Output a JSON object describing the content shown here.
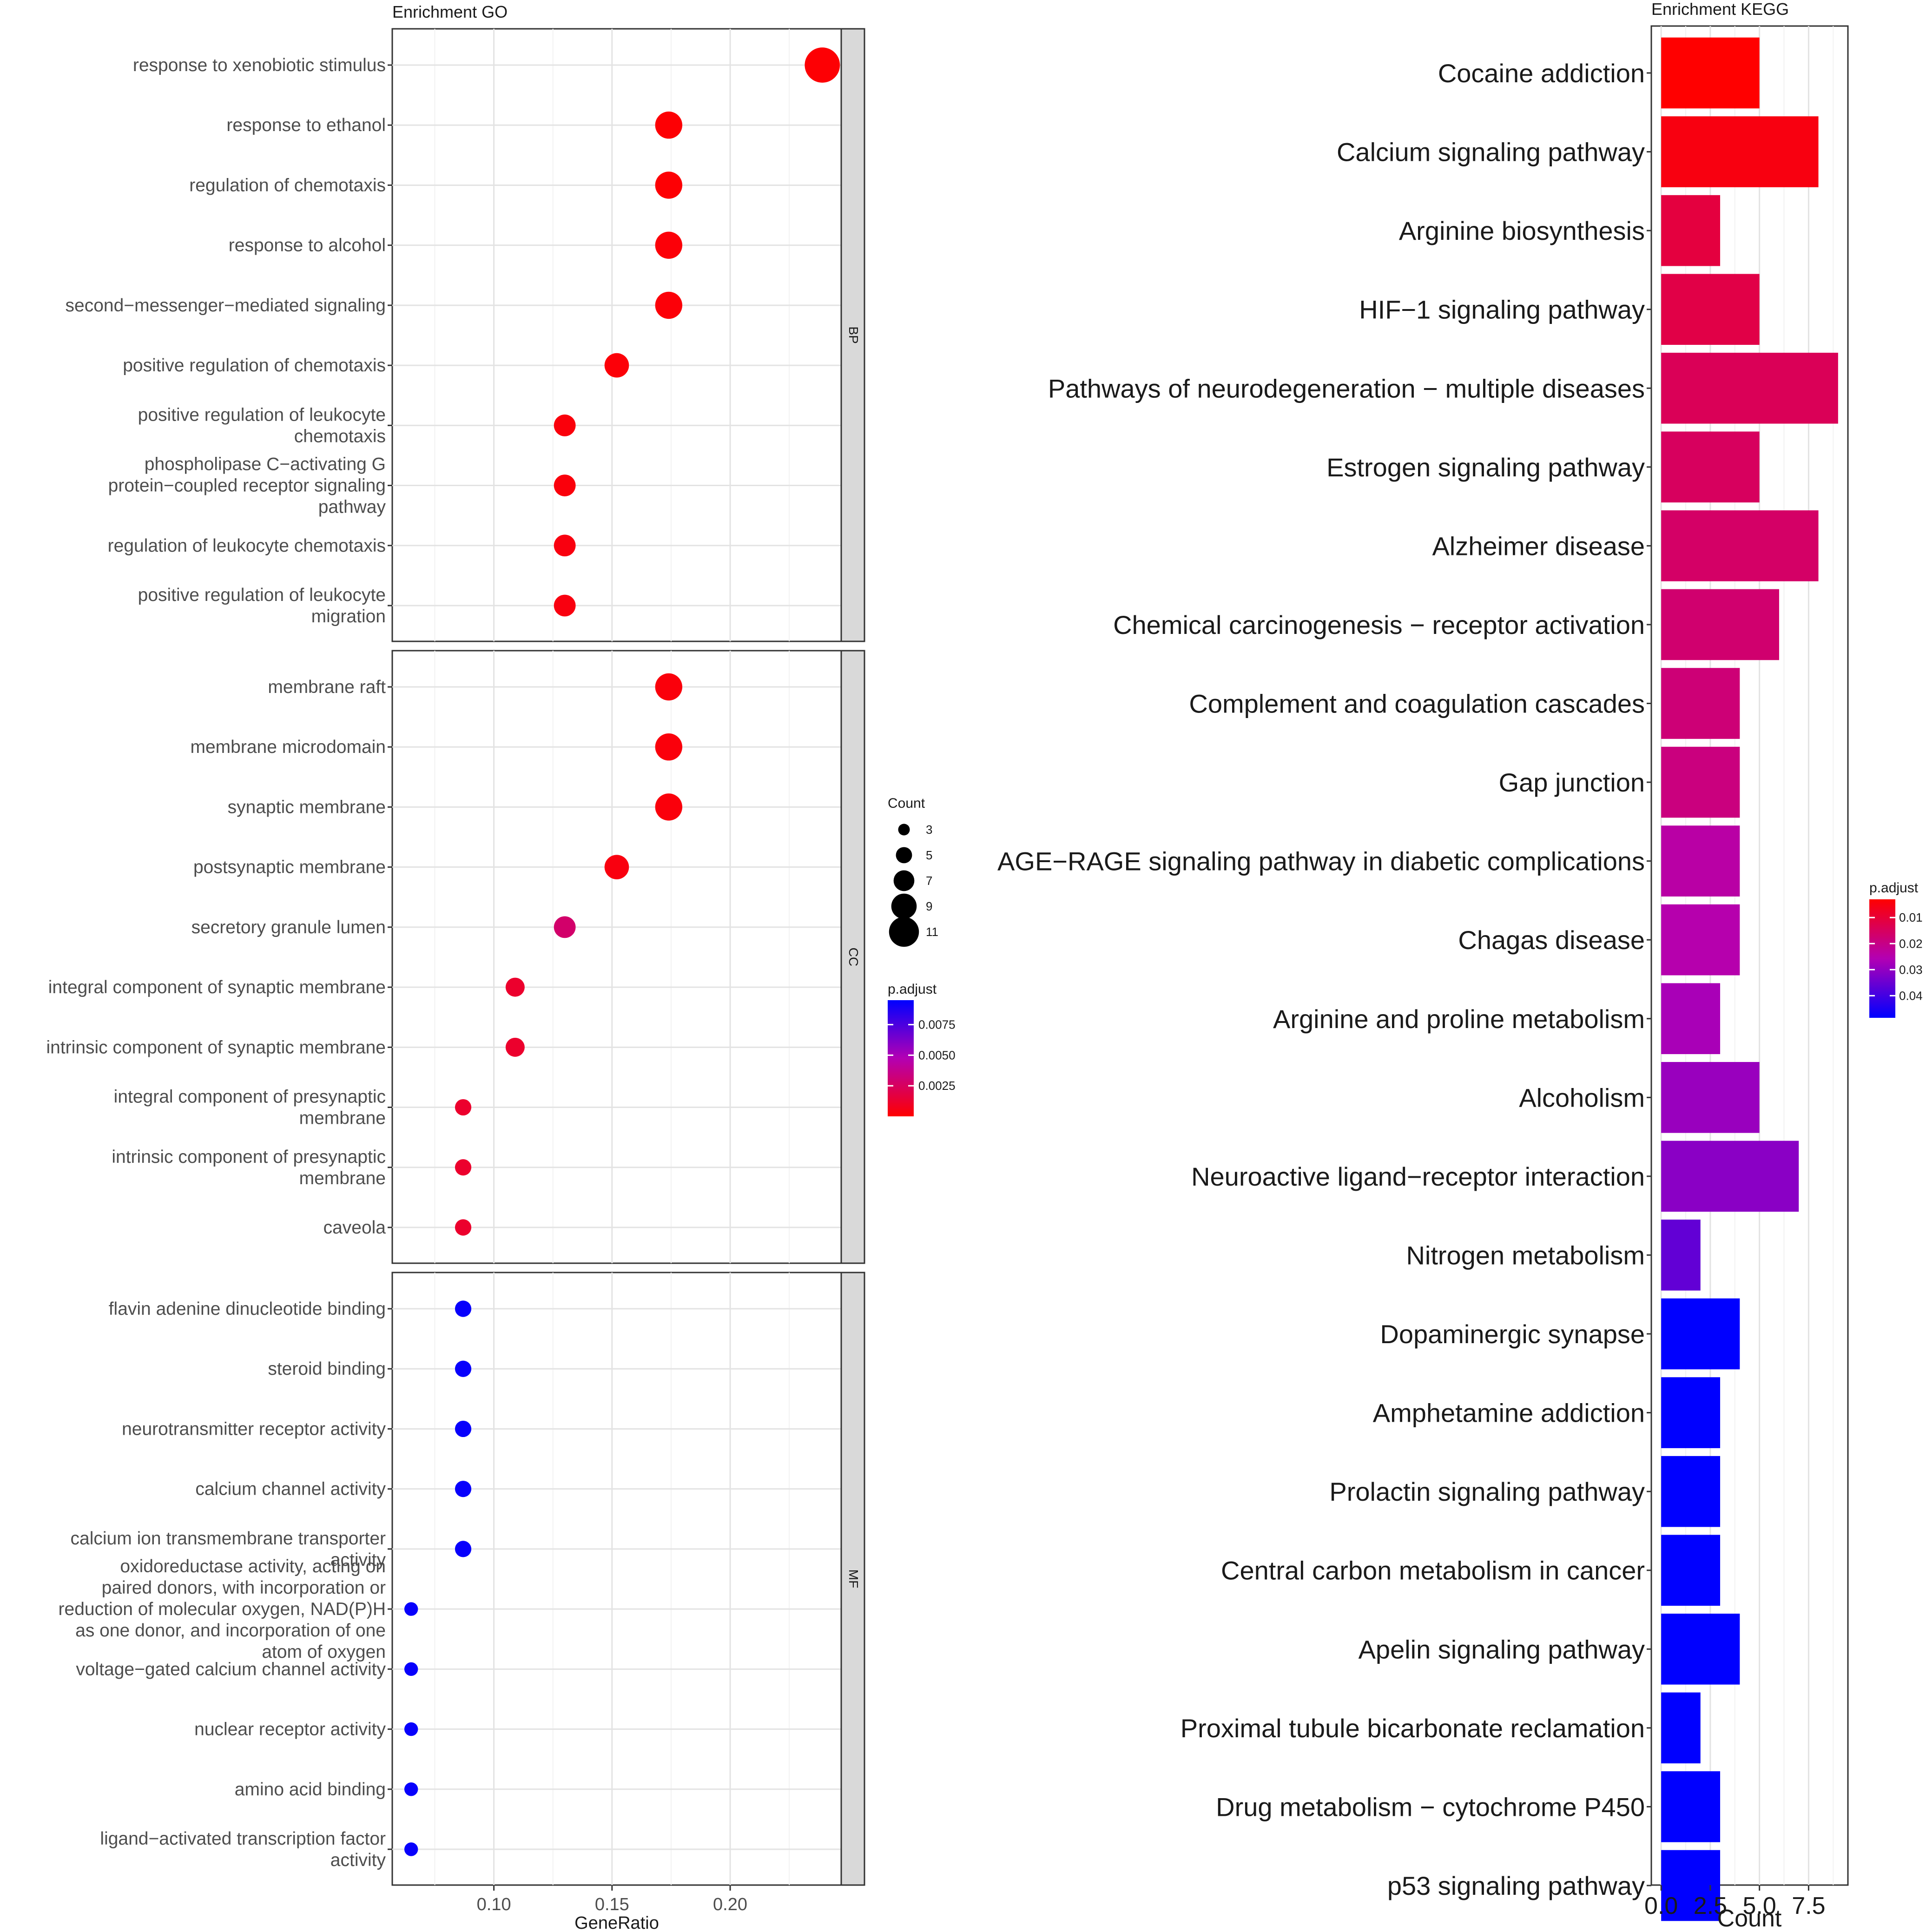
{
  "chart_data": [
    {
      "type": "scatter",
      "title": "Enrichment GO",
      "xlabel": "GeneRatio",
      "ylabel": "",
      "xlim": [
        0.057,
        0.247
      ],
      "x_ticks": [
        "0.10",
        "0.15",
        "0.20"
      ],
      "x_tick_values": [
        0.1,
        0.15,
        0.2
      ],
      "grid": true,
      "size_legend": {
        "title": "Count",
        "values": [
          3,
          5,
          7,
          9,
          11
        ]
      },
      "color_legend": {
        "title": "p.adjust",
        "range": [
          0.0,
          0.0095
        ],
        "ticks": [
          "0.0075",
          "0.0050",
          "0.0025"
        ],
        "tick_values": [
          0.0075,
          0.005,
          0.0025
        ],
        "low_color": "#ff0000",
        "high_color": "#0000ff"
      },
      "facets": [
        {
          "label": "BP",
          "terms": [
            {
              "term": "response to xenobiotic stimulus",
              "gene_ratio": 0.239,
              "count": 11,
              "p_adjust": 0.0001
            },
            {
              "term": "response to ethanol",
              "gene_ratio": 0.174,
              "count": 8,
              "p_adjust": 0.0001
            },
            {
              "term": "regulation of chemotaxis",
              "gene_ratio": 0.174,
              "count": 8,
              "p_adjust": 0.0001
            },
            {
              "term": "response to alcohol",
              "gene_ratio": 0.174,
              "count": 8,
              "p_adjust": 0.0002
            },
            {
              "term": "second−messenger−mediated signaling",
              "gene_ratio": 0.174,
              "count": 8,
              "p_adjust": 0.0002
            },
            {
              "term": "positive regulation of chemotaxis",
              "gene_ratio": 0.152,
              "count": 7,
              "p_adjust": 0.0002
            },
            {
              "term": "positive regulation of leukocyte chemotaxis",
              "gene_ratio": 0.13,
              "count": 6,
              "p_adjust": 0.0003
            },
            {
              "term": "phospholipase C−activating G protein−coupled receptor signaling pathway",
              "gene_ratio": 0.13,
              "count": 6,
              "p_adjust": 0.0003
            },
            {
              "term": "regulation of leukocyte chemotaxis",
              "gene_ratio": 0.13,
              "count": 6,
              "p_adjust": 0.0004
            },
            {
              "term": "positive regulation of leukocyte migration",
              "gene_ratio": 0.13,
              "count": 6,
              "p_adjust": 0.0004
            }
          ]
        },
        {
          "label": "CC",
          "terms": [
            {
              "term": "membrane raft",
              "gene_ratio": 0.174,
              "count": 8,
              "p_adjust": 0.0003
            },
            {
              "term": "membrane microdomain",
              "gene_ratio": 0.174,
              "count": 8,
              "p_adjust": 0.0003
            },
            {
              "term": "synaptic membrane",
              "gene_ratio": 0.174,
              "count": 8,
              "p_adjust": 0.0003
            },
            {
              "term": "postsynaptic membrane",
              "gene_ratio": 0.152,
              "count": 7,
              "p_adjust": 0.0004
            },
            {
              "term": "secretory granule lumen",
              "gene_ratio": 0.13,
              "count": 6,
              "p_adjust": 0.0028
            },
            {
              "term": "integral component of synaptic membrane",
              "gene_ratio": 0.109,
              "count": 5,
              "p_adjust": 0.0012
            },
            {
              "term": "intrinsic component of synaptic membrane",
              "gene_ratio": 0.109,
              "count": 5,
              "p_adjust": 0.0012
            },
            {
              "term": "integral component of presynaptic membrane",
              "gene_ratio": 0.087,
              "count": 4,
              "p_adjust": 0.0012
            },
            {
              "term": "intrinsic component of presynaptic membrane",
              "gene_ratio": 0.087,
              "count": 4,
              "p_adjust": 0.0012
            },
            {
              "term": "caveola",
              "gene_ratio": 0.087,
              "count": 4,
              "p_adjust": 0.0012
            }
          ]
        },
        {
          "label": "MF",
          "terms": [
            {
              "term": "flavin adenine dinucleotide binding",
              "gene_ratio": 0.087,
              "count": 4,
              "p_adjust": 0.0093
            },
            {
              "term": "steroid binding",
              "gene_ratio": 0.087,
              "count": 4,
              "p_adjust": 0.0093
            },
            {
              "term": "neurotransmitter receptor activity",
              "gene_ratio": 0.087,
              "count": 4,
              "p_adjust": 0.0093
            },
            {
              "term": "calcium channel activity",
              "gene_ratio": 0.087,
              "count": 4,
              "p_adjust": 0.0093
            },
            {
              "term": "calcium ion transmembrane transporter activity",
              "gene_ratio": 0.087,
              "count": 4,
              "p_adjust": 0.0093
            },
            {
              "term": "oxidoreductase activity, acting on paired donors, with incorporation or reduction of molecular oxygen, NAD(P)H as one donor, and incorporation of one atom of oxygen",
              "gene_ratio": 0.065,
              "count": 3,
              "p_adjust": 0.0093
            },
            {
              "term": "voltage−gated calcium channel activity",
              "gene_ratio": 0.065,
              "count": 3,
              "p_adjust": 0.0093
            },
            {
              "term": "nuclear receptor activity",
              "gene_ratio": 0.065,
              "count": 3,
              "p_adjust": 0.0093
            },
            {
              "term": "amino acid binding",
              "gene_ratio": 0.065,
              "count": 3,
              "p_adjust": 0.0093
            },
            {
              "term": "ligand−activated transcription factor activity",
              "gene_ratio": 0.065,
              "count": 3,
              "p_adjust": 0.0093
            }
          ]
        }
      ]
    },
    {
      "type": "bar",
      "orientation": "horizontal",
      "title": "Enrichment KEGG",
      "xlabel": "Count",
      "ylabel": "",
      "xlim": [
        -0.5,
        9.5
      ],
      "x_ticks": [
        "0.0",
        "2.5",
        "5.0",
        "7.5"
      ],
      "x_tick_values": [
        0,
        2.5,
        5,
        7.5
      ],
      "grid": true,
      "color_legend": {
        "title": "p.adjust",
        "range": [
          0.003,
          0.0485
        ],
        "ticks": [
          "0.01",
          "0.02",
          "0.03",
          "0.04"
        ],
        "tick_values": [
          0.01,
          0.02,
          0.03,
          0.04
        ],
        "low_color": "#ff0000",
        "high_color": "#0000ff"
      },
      "categories": [
        "Cocaine addiction",
        "Calcium signaling pathway",
        "Arginine biosynthesis",
        "HIF−1 signaling pathway",
        "Pathways of neurodegeneration − multiple diseases",
        "Estrogen signaling pathway",
        "Alzheimer disease",
        "Chemical carcinogenesis − receptor activation",
        "Complement and coagulation cascades",
        "Gap junction",
        "AGE−RAGE signaling pathway in diabetic complications",
        "Chagas disease",
        "Arginine and proline metabolism",
        "Alcoholism",
        "Neuroactive ligand−receptor interaction",
        "Nitrogen metabolism",
        "Dopaminergic synapse",
        "Amphetamine addiction",
        "Prolactin signaling pathway",
        "Central carbon metabolism in cancer",
        "Apelin signaling pathway",
        "Proximal tubule bicarbonate reclamation",
        "Drug metabolism − cytochrome P450",
        "p53 signaling pathway"
      ],
      "values": [
        5,
        8,
        3,
        5,
        9,
        5,
        8,
        6,
        4,
        4,
        4,
        4,
        3,
        5,
        7,
        2,
        4,
        3,
        3,
        3,
        4,
        2,
        3,
        3
      ],
      "p_adjust": [
        0.003,
        0.005,
        0.011,
        0.012,
        0.014,
        0.015,
        0.016,
        0.017,
        0.018,
        0.019,
        0.024,
        0.025,
        0.027,
        0.029,
        0.031,
        0.036,
        0.0485,
        0.0485,
        0.0485,
        0.0485,
        0.0485,
        0.0485,
        0.0485,
        0.0485
      ]
    }
  ]
}
